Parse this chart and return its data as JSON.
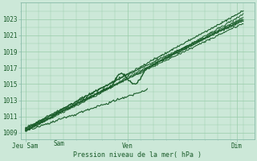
{
  "bg_color": "#cce8d8",
  "grid_color": "#99ccaa",
  "line_color": "#1a5c2a",
  "xlabel": "Pression niveau de la mer( hPa )",
  "xtick_labels": [
    "Jeu Sam",
    "Ven",
    "Dim"
  ],
  "xtick_positions": [
    0.0,
    0.47,
    0.97
  ],
  "ytick_labels": [
    "1009",
    "1011",
    "1013",
    "1015",
    "1017",
    "1019",
    "1021",
    "1023"
  ],
  "ytick_values": [
    1009,
    1011,
    1013,
    1015,
    1017,
    1019,
    1021,
    1023
  ],
  "ymin": 1008.2,
  "ymax": 1025.0,
  "xmin": -0.02,
  "xmax": 1.05
}
